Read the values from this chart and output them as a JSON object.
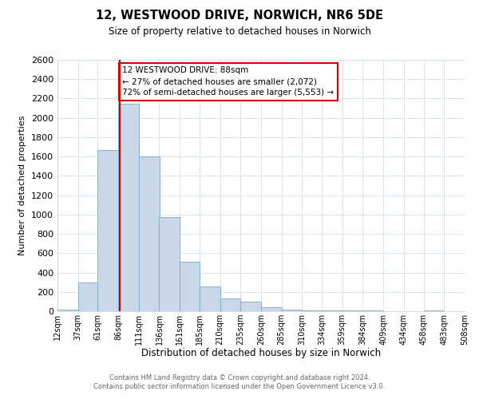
{
  "title": "12, WESTWOOD DRIVE, NORWICH, NR6 5DE",
  "subtitle": "Size of property relative to detached houses in Norwich",
  "xlabel": "Distribution of detached houses by size in Norwich",
  "ylabel": "Number of detached properties",
  "footnote1": "Contains HM Land Registry data © Crown copyright and database right 2024.",
  "footnote2": "Contains public sector information licensed under the Open Government Licence v3.0.",
  "annotation_line1": "12 WESTWOOD DRIVE: 88sqm",
  "annotation_line2": "← 27% of detached houses are smaller (2,072)",
  "annotation_line3": "72% of semi-detached houses are larger (5,553) →",
  "property_size": 88,
  "bin_edges": [
    12,
    37,
    61,
    86,
    111,
    136,
    161,
    185,
    210,
    235,
    260,
    285,
    310,
    334,
    359,
    384,
    409,
    434,
    458,
    483,
    508
  ],
  "bar_heights": [
    20,
    300,
    1670,
    2150,
    1600,
    970,
    510,
    255,
    130,
    100,
    40,
    20,
    5,
    5,
    5,
    5,
    2,
    2,
    5,
    2
  ],
  "bar_color": "#c8d8e8",
  "bar_edge_color": "#7aaac8",
  "redline_color": "#cc0000",
  "annotation_box_edge": "#cc0000",
  "ylim": [
    0,
    2600
  ],
  "yticks": [
    0,
    200,
    400,
    600,
    800,
    1000,
    1200,
    1400,
    1600,
    1800,
    2000,
    2200,
    2400,
    2600
  ],
  "xtick_labels": [
    "12sqm",
    "37sqm",
    "61sqm",
    "86sqm",
    "111sqm",
    "136sqm",
    "161sqm",
    "185sqm",
    "210sqm",
    "235sqm",
    "260sqm",
    "285sqm",
    "310sqm",
    "334sqm",
    "359sqm",
    "384sqm",
    "409sqm",
    "434sqm",
    "458sqm",
    "483sqm",
    "508sqm"
  ],
  "grid_color": "#d8e4ec",
  "background_color": "#ffffff",
  "title_fontsize": 10.5,
  "subtitle_fontsize": 8.5,
  "ylabel_fontsize": 8,
  "xlabel_fontsize": 8.5,
  "ytick_fontsize": 8,
  "xtick_fontsize": 7,
  "footnote_fontsize": 6,
  "footnote_color": "#666666",
  "annot_fontsize": 7.5
}
